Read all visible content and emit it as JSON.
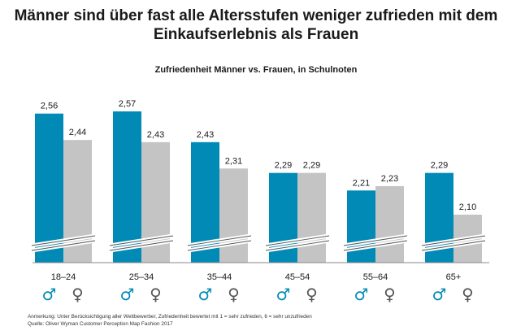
{
  "chart_data": {
    "type": "bar",
    "title": "Männer sind über fast alle Altersstufen weniger zufrieden mit dem Einkaufserlebnis als Frauen",
    "subtitle": "Zufriedenheit  Männer  vs. Frauen, in Schulnoten",
    "categories": [
      "18–24",
      "25–34",
      "35–44",
      "45–54",
      "55–64",
      "65+"
    ],
    "value_labels_decimal": ",",
    "series": [
      {
        "name": "♂",
        "color": "#008ab5",
        "values": [
          2.56,
          2.57,
          2.43,
          2.29,
          2.21,
          2.29
        ]
      },
      {
        "name": "♀",
        "color": "#c4c4c4",
        "values": [
          2.44,
          2.43,
          2.31,
          2.29,
          2.23,
          2.1
        ]
      }
    ],
    "axis_break": true,
    "grid": false,
    "legend": "gender symbols below each category"
  },
  "footnotes": {
    "note": "Anmerkung: Unter Berücksichtigung aller Wettbewerber, Zufriedenheit bewertet mit 1 = sehr zufrieden, 6 = sehr unzufrieden",
    "source": "Quelle: Oliver Wyman Customer Perception Map Fashion 2017"
  }
}
